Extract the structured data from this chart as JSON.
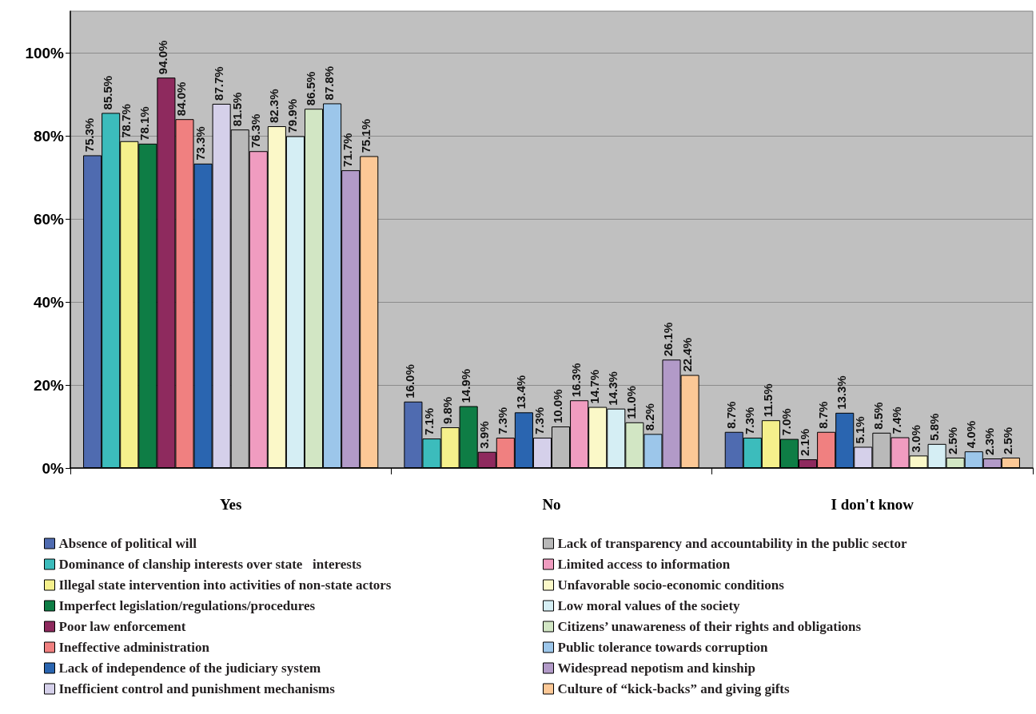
{
  "chart_data": {
    "type": "bar",
    "categories": [
      "Yes",
      "No",
      "I don't know"
    ],
    "ylim": [
      0,
      110
    ],
    "yticks": [
      {
        "value": 0,
        "label": "0%"
      },
      {
        "value": 20,
        "label": "20%"
      },
      {
        "value": 40,
        "label": "40%"
      },
      {
        "value": 60,
        "label": "60%"
      },
      {
        "value": 80,
        "label": "80%"
      },
      {
        "value": 100,
        "label": "100%"
      }
    ],
    "grid": "y",
    "legend": "bottom",
    "series": [
      {
        "name": "Absence of political will",
        "color": "#4f6bb0",
        "values": [
          75.3,
          16.0,
          8.7
        ],
        "value_labels": [
          "75.3%",
          "16.0%",
          "8.7%"
        ]
      },
      {
        "name": "Dominance of clanship interests over state   interests",
        "color": "#3cbcbc",
        "values": [
          85.5,
          7.1,
          7.3
        ],
        "value_labels": [
          "85.5%",
          "7.1%",
          "7.3%"
        ]
      },
      {
        "name": "Illegal state intervention into activities of non-state actors",
        "color": "#f5f08c",
        "values": [
          78.7,
          9.8,
          11.5
        ],
        "value_labels": [
          "78.7%",
          "9.8%",
          "11.5%"
        ]
      },
      {
        "name": "Imperfect legislation/regulations/procedures",
        "color": "#0e7d45",
        "values": [
          78.1,
          14.9,
          7.0
        ],
        "value_labels": [
          "78.1%",
          "14.9%",
          "7.0%"
        ]
      },
      {
        "name": "Poor law enforcement",
        "color": "#8e2a5e",
        "values": [
          94.0,
          3.9,
          2.1
        ],
        "value_labels": [
          "94.0%",
          "3.9%",
          "2.1%"
        ]
      },
      {
        "name": "Ineffective administration",
        "color": "#f08080",
        "values": [
          84.0,
          7.3,
          8.7
        ],
        "value_labels": [
          "84.0%",
          "7.3%",
          "8.7%"
        ]
      },
      {
        "name": "Lack of independence of the judiciary system",
        "color": "#2a65b0",
        "values": [
          73.3,
          13.4,
          13.3
        ],
        "value_labels": [
          "73.3%",
          "13.4%",
          "13.3%"
        ]
      },
      {
        "name": "Inefficient control and punishment mechanisms",
        "color": "#d5d0ea",
        "values": [
          87.7,
          7.3,
          5.1
        ],
        "value_labels": [
          "87.7%",
          "7.3%",
          "5.1%"
        ]
      },
      {
        "name": "Lack of transparency and accountability in the public sector",
        "color": "#b9b9b9",
        "values": [
          81.5,
          10.0,
          8.5
        ],
        "value_labels": [
          "81.5%",
          "10.0%",
          "8.5%"
        ]
      },
      {
        "name": "Limited access to information",
        "color": "#f09cc0",
        "values": [
          76.3,
          16.3,
          7.4
        ],
        "value_labels": [
          "76.3%",
          "16.3%",
          "7.4%"
        ]
      },
      {
        "name": "Unfavorable socio-economic conditions",
        "color": "#fbf8c8",
        "values": [
          82.3,
          14.7,
          3.0
        ],
        "value_labels": [
          "82.3%",
          "14.7%",
          "3.0%"
        ]
      },
      {
        "name": "Low moral values of the society",
        "color": "#d5eef4",
        "values": [
          79.9,
          14.3,
          5.8
        ],
        "value_labels": [
          "79.9%",
          "14.3%",
          "5.8%"
        ]
      },
      {
        "name": "Citizens’ unawareness of their rights and obligations",
        "color": "#d2e6c4",
        "values": [
          86.5,
          11.0,
          2.5
        ],
        "value_labels": [
          "86.5%",
          "11.0%",
          "2.5%"
        ]
      },
      {
        "name": "Public tolerance towards corruption",
        "color": "#9cc6ea",
        "values": [
          87.8,
          8.2,
          4.0
        ],
        "value_labels": [
          "87.8%",
          "8.2%",
          "4.0%"
        ]
      },
      {
        "name": "Widespread nepotism and kinship",
        "color": "#b29ac8",
        "values": [
          71.7,
          26.1,
          2.3
        ],
        "value_labels": [
          "71.7%",
          "26.1%",
          "2.3%"
        ]
      },
      {
        "name": "Culture of “kick-backs” and giving gifts",
        "color": "#fcc896",
        "values": [
          75.1,
          22.4,
          2.5
        ],
        "value_labels": [
          "75.1%",
          "22.4%",
          "2.5%"
        ]
      }
    ]
  }
}
